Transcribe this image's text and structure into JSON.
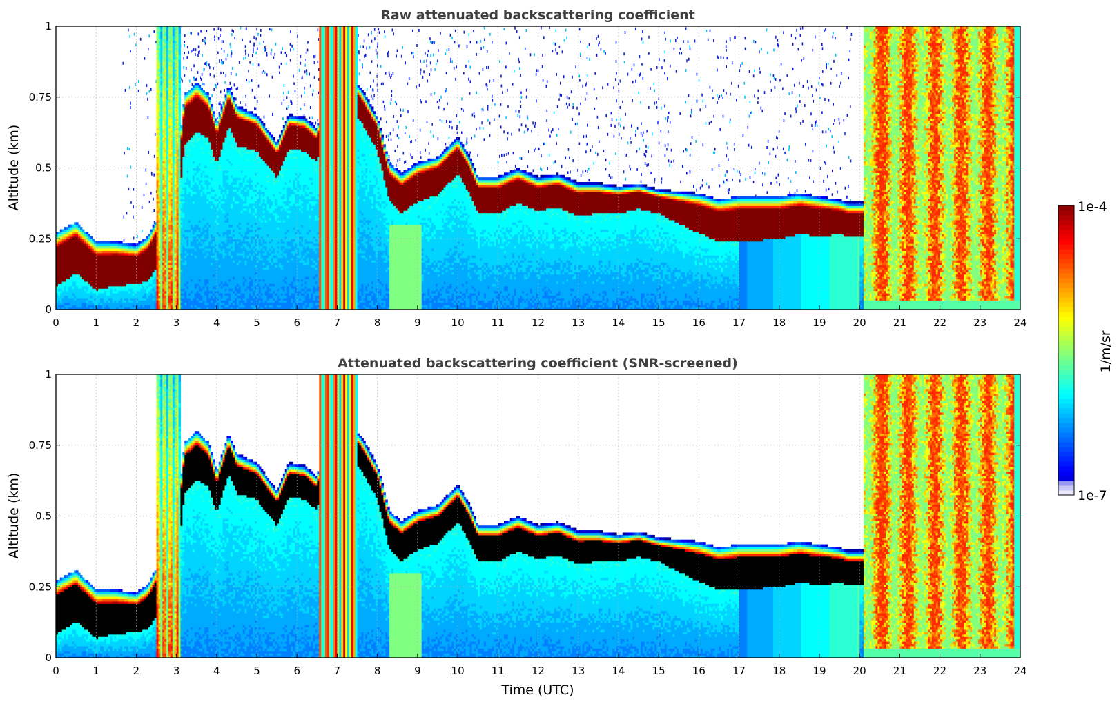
{
  "chart_data": [
    {
      "type": "heatmap",
      "title": "Raw attenuated backscattering coefficient",
      "xlabel": "",
      "ylabel": "Altitude (km)",
      "xlim": [
        0,
        24
      ],
      "ylim": [
        0,
        1
      ],
      "x_ticks": [
        "0",
        "1",
        "2",
        "3",
        "4",
        "5",
        "6",
        "7",
        "8",
        "9",
        "10",
        "11",
        "12",
        "13",
        "14",
        "15",
        "16",
        "17",
        "18",
        "19",
        "20",
        "21",
        "22",
        "23",
        "24"
      ],
      "y_ticks": [
        "0",
        "0.25",
        "0.5",
        "0.75",
        "1"
      ],
      "grid": true,
      "cloud_top_km": [
        [
          0,
          0.25
        ],
        [
          0.5,
          0.29
        ],
        [
          1,
          0.22
        ],
        [
          1.5,
          0.22
        ],
        [
          2,
          0.21
        ],
        [
          2.3,
          0.24
        ],
        [
          2.5,
          0.3
        ],
        [
          2.8,
          0.38
        ],
        [
          3,
          0.45
        ],
        [
          3.2,
          0.74
        ],
        [
          3.5,
          0.78
        ],
        [
          3.8,
          0.74
        ],
        [
          4,
          0.64
        ],
        [
          4.3,
          0.77
        ],
        [
          4.5,
          0.7
        ],
        [
          5,
          0.67
        ],
        [
          5.5,
          0.57
        ],
        [
          5.8,
          0.67
        ],
        [
          6.2,
          0.66
        ],
        [
          6.5,
          0.62
        ],
        [
          6.7,
          0.8
        ],
        [
          7,
          0.74
        ],
        [
          7.3,
          0.82
        ],
        [
          7.7,
          0.74
        ],
        [
          8,
          0.66
        ],
        [
          8.3,
          0.5
        ],
        [
          8.6,
          0.46
        ],
        [
          9,
          0.5
        ],
        [
          9.5,
          0.52
        ],
        [
          10,
          0.59
        ],
        [
          10.3,
          0.52
        ],
        [
          10.5,
          0.45
        ],
        [
          11,
          0.45
        ],
        [
          11.5,
          0.48
        ],
        [
          12,
          0.45
        ],
        [
          12.5,
          0.46
        ],
        [
          13,
          0.43
        ],
        [
          13.5,
          0.43
        ],
        [
          14,
          0.42
        ],
        [
          14.5,
          0.43
        ],
        [
          15,
          0.41
        ],
        [
          15.5,
          0.4
        ],
        [
          16,
          0.39
        ],
        [
          16.5,
          0.37
        ],
        [
          17,
          0.38
        ],
        [
          17.5,
          0.38
        ],
        [
          18,
          0.38
        ],
        [
          18.5,
          0.39
        ],
        [
          19,
          0.38
        ],
        [
          19.5,
          0.37
        ],
        [
          19.7,
          0.36
        ]
      ],
      "cloud_thickness_km": [
        [
          0,
          0.17
        ],
        [
          1,
          0.15
        ],
        [
          2,
          0.12
        ],
        [
          3,
          0.18
        ],
        [
          3.2,
          0.16
        ],
        [
          4,
          0.13
        ],
        [
          5,
          0.11
        ],
        [
          6,
          0.1
        ],
        [
          7,
          0.1
        ],
        [
          8,
          0.1
        ],
        [
          8.5,
          0.12
        ],
        [
          9,
          0.12
        ],
        [
          10,
          0.11
        ],
        [
          11,
          0.11
        ],
        [
          12,
          0.1
        ],
        [
          13,
          0.1
        ],
        [
          14,
          0.08
        ],
        [
          15,
          0.07
        ],
        [
          16,
          0.12
        ],
        [
          17,
          0.14
        ],
        [
          18,
          0.13
        ],
        [
          19,
          0.12
        ],
        [
          19.7,
          0.1
        ]
      ],
      "high_signal_bands_utc": [
        [
          2.5,
          3.1
        ],
        [
          6.55,
          7.5
        ],
        [
          20.1,
          23.9
        ]
      ],
      "colorbar": {
        "label": "1/m/sr",
        "min_label": "1e-7",
        "max_label": "1e-4",
        "scale": "log",
        "colormap": "jet"
      }
    },
    {
      "type": "heatmap",
      "title": "Attenuated backscattering coefficient (SNR-screened)",
      "xlabel": "Time (UTC)",
      "ylabel": "Altitude (km)",
      "xlim": [
        0,
        24
      ],
      "ylim": [
        0,
        1
      ],
      "x_ticks": [
        "0",
        "1",
        "2",
        "3",
        "4",
        "5",
        "6",
        "7",
        "8",
        "9",
        "10",
        "11",
        "12",
        "13",
        "14",
        "15",
        "16",
        "17",
        "18",
        "19",
        "20",
        "21",
        "22",
        "23",
        "24"
      ],
      "y_ticks": [
        "0",
        "0.25",
        "0.5",
        "0.75",
        "1"
      ],
      "grid": true,
      "saturated_color": "#000000",
      "screened_color": "#ffffff"
    }
  ],
  "colors": {
    "title_text": "#404040",
    "grid": "#b0b0b0",
    "saturated_core": "#7f0000",
    "background": "#ffffff"
  }
}
